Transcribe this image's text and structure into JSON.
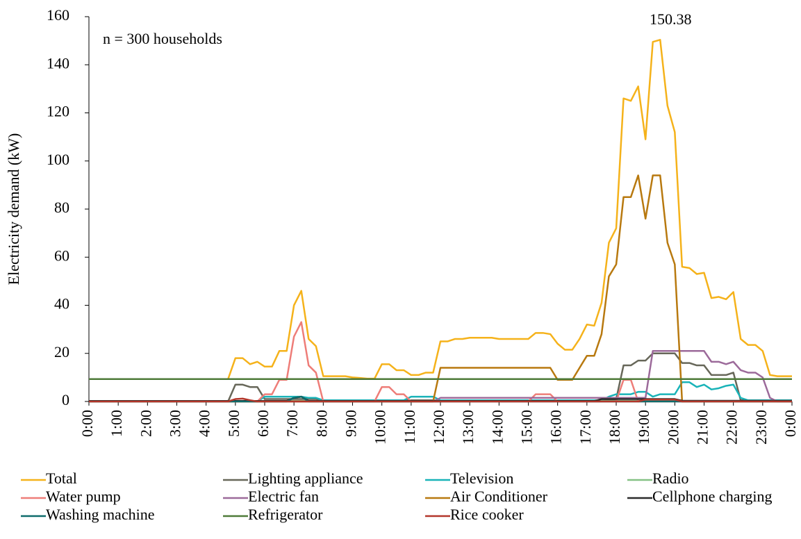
{
  "chart_data": {
    "type": "line",
    "ylabel": "Electricity demand (kW)",
    "annotations": [
      "n = 300 households",
      "150.38"
    ],
    "ylim": [
      0,
      160
    ],
    "yticks": [
      0,
      20,
      40,
      60,
      80,
      100,
      120,
      140,
      160
    ],
    "xlim": [
      0,
      24
    ],
    "xticks": [
      {
        "value": 0,
        "label": "0:00"
      },
      {
        "value": 1,
        "label": "1:00"
      },
      {
        "value": 2,
        "label": "2:00"
      },
      {
        "value": 3,
        "label": "3:00"
      },
      {
        "value": 4,
        "label": "4:00"
      },
      {
        "value": 5,
        "label": "5:00"
      },
      {
        "value": 6,
        "label": "6:00"
      },
      {
        "value": 7,
        "label": "7:00"
      },
      {
        "value": 8,
        "label": "8:00"
      },
      {
        "value": 9,
        "label": "9:00"
      },
      {
        "value": 10,
        "label": "10:00"
      },
      {
        "value": 11,
        "label": "11:00"
      },
      {
        "value": 12,
        "label": "12:00"
      },
      {
        "value": 13,
        "label": "13:00"
      },
      {
        "value": 14,
        "label": "14:00"
      },
      {
        "value": 15,
        "label": "15:00"
      },
      {
        "value": 16,
        "label": "16:00"
      },
      {
        "value": 17,
        "label": "17:00"
      },
      {
        "value": 18,
        "label": "18:00"
      },
      {
        "value": 19,
        "label": "19:00"
      },
      {
        "value": 20,
        "label": "20:00"
      },
      {
        "value": 21,
        "label": "21:00"
      },
      {
        "value": 22,
        "label": "22:00"
      },
      {
        "value": 23,
        "label": "23:00"
      },
      {
        "value": 24,
        "label": "0:00"
      }
    ],
    "x": [
      0,
      0.25,
      0.5,
      0.75,
      1,
      1.25,
      1.5,
      1.75,
      2,
      2.25,
      2.5,
      2.75,
      3,
      3.25,
      3.5,
      3.75,
      4,
      4.25,
      4.5,
      4.75,
      5,
      5.25,
      5.5,
      5.75,
      6,
      6.25,
      6.5,
      6.75,
      7,
      7.25,
      7.5,
      7.75,
      8,
      8.25,
      8.5,
      8.75,
      9,
      9.25,
      9.5,
      9.75,
      10,
      10.25,
      10.5,
      10.75,
      11,
      11.25,
      11.5,
      11.75,
      12,
      12.25,
      12.5,
      12.75,
      13,
      13.25,
      13.5,
      13.75,
      14,
      14.25,
      14.5,
      14.75,
      15,
      15.25,
      15.5,
      15.75,
      16,
      16.25,
      16.5,
      16.75,
      17,
      17.25,
      17.5,
      17.75,
      18,
      18.25,
      18.5,
      18.75,
      19,
      19.25,
      19.5,
      19.75,
      20,
      20.25,
      20.5,
      20.75,
      21,
      21.25,
      21.5,
      21.75,
      22,
      22.25,
      22.5,
      22.75,
      23,
      23.25,
      23.5,
      23.75,
      24
    ],
    "series": [
      {
        "name": "Total",
        "color": "#f5b21a",
        "values": [
          9.3,
          9.3,
          9.3,
          9.3,
          9.3,
          9.3,
          9.3,
          9.3,
          9.3,
          9.3,
          9.3,
          9.3,
          9.3,
          9.3,
          9.3,
          9.3,
          9.3,
          9.3,
          9.3,
          9.3,
          18,
          18,
          15.5,
          16.5,
          14.5,
          14.5,
          21,
          21,
          40,
          46,
          26,
          23,
          10.5,
          10.5,
          10.5,
          10.5,
          10,
          9.8,
          9.5,
          9.5,
          15.5,
          15.5,
          13,
          13,
          11,
          11,
          12,
          12,
          25,
          25,
          26,
          26,
          26.5,
          26.5,
          26.5,
          26.5,
          26,
          26,
          26,
          26,
          26,
          28.5,
          28.5,
          28,
          24,
          21.5,
          21.5,
          26,
          32,
          31.5,
          41,
          66,
          72,
          126,
          125,
          131,
          109,
          149.5,
          150.38,
          123,
          112,
          56,
          55.5,
          53,
          53.5,
          43,
          43.5,
          42.5,
          45.5,
          26,
          23.5,
          23.5,
          21,
          11,
          10.5,
          10.5,
          10.5
        ]
      },
      {
        "name": "Lighting appliance",
        "color": "#676759",
        "values": [
          0,
          0,
          0,
          0,
          0,
          0,
          0,
          0,
          0,
          0,
          0,
          0,
          0,
          0,
          0,
          0,
          0,
          0,
          0,
          0,
          7,
          7,
          6,
          6,
          1,
          1,
          1,
          1,
          1,
          1,
          1,
          1,
          0.5,
          0.5,
          0.5,
          0.5,
          0.5,
          0.5,
          0.5,
          0.5,
          0.5,
          0.5,
          0.5,
          0.5,
          0.5,
          0.5,
          0.5,
          0.5,
          0.5,
          0.5,
          0.5,
          0.5,
          0.5,
          0.5,
          0.5,
          0.5,
          0.5,
          0.5,
          0.5,
          0.5,
          0.5,
          0.5,
          0.5,
          0.5,
          0.5,
          0.5,
          0.5,
          0.5,
          0.5,
          0.5,
          0.5,
          0.5,
          1,
          15,
          15,
          17,
          17,
          20,
          20,
          20,
          20,
          16,
          16,
          15,
          15,
          11,
          11,
          11,
          12,
          0.5,
          0.5,
          0.5,
          0.5,
          0.5,
          0.5,
          0.5,
          0.5
        ]
      },
      {
        "name": "Television",
        "color": "#19b3b8",
        "values": [
          0,
          0,
          0,
          0,
          0,
          0,
          0,
          0,
          0,
          0,
          0,
          0,
          0,
          0,
          0,
          0,
          0,
          0,
          0,
          0,
          0,
          0,
          0,
          0,
          2,
          2,
          2,
          2,
          2,
          2,
          1.5,
          1.5,
          0.5,
          0.5,
          0.5,
          0.5,
          0.5,
          0.5,
          0.5,
          0.5,
          0.5,
          0.5,
          0.5,
          0.5,
          2,
          2,
          2,
          2,
          0.5,
          0.5,
          0.5,
          0.5,
          0.5,
          0.5,
          0.5,
          0.5,
          0.5,
          0.5,
          0.5,
          0.5,
          0.5,
          0.5,
          0.5,
          0.5,
          0.5,
          0.5,
          0.5,
          0.5,
          0.5,
          0.5,
          0.5,
          2,
          3,
          3,
          3,
          4,
          4,
          2,
          3,
          3,
          3,
          8,
          8,
          6,
          7,
          5,
          5.5,
          6.5,
          7,
          1.5,
          0.5,
          0.5,
          0.5,
          0.5,
          0.5,
          0.5,
          0.5
        ]
      },
      {
        "name": "Radio",
        "color": "#85c285",
        "values": [
          0.2,
          0.2,
          0.2,
          0.2,
          0.2,
          0.2,
          0.2,
          0.2,
          0.2,
          0.2,
          0.2,
          0.2,
          0.2,
          0.2,
          0.2,
          0.2,
          0.2,
          0.2,
          0.2,
          0.2,
          0.2,
          0.2,
          0.2,
          0.2,
          0.2,
          0.2,
          0.2,
          0.2,
          0.2,
          0.2,
          0.2,
          0.2,
          0.2,
          0.2,
          0.2,
          0.2,
          0.2,
          0.2,
          0.2,
          0.2,
          0.2,
          0.2,
          0.2,
          0.2,
          0.2,
          0.2,
          0.2,
          0.2,
          0.2,
          0.2,
          0.2,
          0.2,
          0.2,
          0.2,
          0.2,
          0.2,
          0.2,
          0.2,
          0.2,
          0.2,
          0.2,
          0.2,
          0.2,
          0.2,
          0.2,
          0.2,
          0.2,
          0.2,
          0.2,
          0.2,
          0.2,
          0.2,
          0.2,
          0.2,
          0.2,
          0.2,
          0.2,
          0.2,
          0.2,
          0.2,
          0.2,
          0.2,
          0.2,
          0.2,
          0.2,
          0.2,
          0.2,
          0.2,
          0.2,
          0.2,
          0.2,
          0.2,
          0.2,
          0.2,
          0.2,
          0.2,
          0.2
        ]
      },
      {
        "name": "Water pump",
        "color": "#ee7d78",
        "values": [
          0,
          0,
          0,
          0,
          0,
          0,
          0,
          0,
          0,
          0,
          0,
          0,
          0,
          0,
          0,
          0,
          0,
          0,
          0,
          0,
          0,
          0,
          0,
          0,
          3,
          3,
          9,
          9,
          27,
          33,
          15,
          12,
          0,
          0,
          0,
          0,
          0,
          0,
          0,
          0,
          6,
          6,
          3,
          3,
          0,
          0,
          0,
          0,
          0,
          0,
          0,
          0,
          0,
          0,
          0,
          0,
          0,
          0,
          0,
          0,
          0,
          3,
          3,
          3,
          0,
          0,
          0,
          0,
          0,
          0,
          0,
          0,
          0,
          9,
          9,
          0,
          0,
          0,
          0,
          0,
          0,
          0,
          0,
          0,
          0,
          0,
          0,
          0,
          0,
          0,
          0,
          0,
          0,
          0,
          0,
          0,
          0
        ]
      },
      {
        "name": "Electric fan",
        "color": "#9c6a9a",
        "values": [
          0,
          0,
          0,
          0,
          0,
          0,
          0,
          0,
          0,
          0,
          0,
          0,
          0,
          0,
          0,
          0,
          0,
          0,
          0,
          0,
          0,
          0,
          0,
          0,
          0,
          0,
          0,
          0,
          0,
          0,
          0,
          0,
          0,
          0,
          0,
          0,
          0,
          0,
          0,
          0,
          0,
          0,
          0,
          0,
          0,
          0,
          0,
          0,
          1.5,
          1.5,
          1.5,
          1.5,
          1.5,
          1.5,
          1.5,
          1.5,
          1.5,
          1.5,
          1.5,
          1.5,
          1.5,
          1.5,
          1.5,
          1.5,
          1.5,
          1.5,
          1.5,
          1.5,
          1.5,
          1.5,
          1.5,
          1.5,
          1.5,
          1.5,
          1.5,
          1.5,
          1.5,
          21,
          21,
          21,
          21,
          21,
          21,
          21,
          21,
          16.5,
          16.5,
          15.5,
          16.5,
          13,
          12,
          12,
          10,
          1.5,
          0,
          0,
          0
        ]
      },
      {
        "name": "Air Conditioner",
        "color": "#b8790f",
        "values": [
          0,
          0,
          0,
          0,
          0,
          0,
          0,
          0,
          0,
          0,
          0,
          0,
          0,
          0,
          0,
          0,
          0,
          0,
          0,
          0,
          0,
          0,
          0,
          0,
          0,
          0,
          0,
          0,
          0,
          0,
          0,
          0,
          0,
          0,
          0,
          0,
          0,
          0,
          0,
          0,
          0,
          0,
          0,
          0,
          0,
          0,
          0,
          0,
          14,
          14,
          14,
          14,
          14,
          14,
          14,
          14,
          14,
          14,
          14,
          14,
          14,
          14,
          14,
          14,
          9,
          9,
          9,
          14,
          19,
          19,
          28,
          52,
          57,
          85,
          85,
          94,
          76,
          94,
          94,
          66,
          57,
          0,
          0,
          0,
          0,
          0,
          0,
          0,
          0,
          0,
          0,
          0,
          0,
          0,
          0,
          0,
          0
        ]
      },
      {
        "name": "Cellphone charging",
        "color": "#2b2b2b",
        "values": [
          0.2,
          0.2,
          0.2,
          0.2,
          0.2,
          0.2,
          0.2,
          0.2,
          0.2,
          0.2,
          0.2,
          0.2,
          0.2,
          0.2,
          0.2,
          0.2,
          0.2,
          0.2,
          0.2,
          0.2,
          0.2,
          0.2,
          0.2,
          0.2,
          0.2,
          0.2,
          0.2,
          0.2,
          1.5,
          2,
          0.2,
          0.2,
          0.2,
          0.2,
          0.2,
          0.2,
          0.2,
          0.2,
          0.2,
          0.2,
          0.2,
          0.2,
          0.2,
          0.2,
          0.2,
          0.2,
          0.2,
          0.2,
          0.2,
          0.2,
          0.2,
          0.2,
          0.2,
          0.2,
          0.2,
          0.2,
          0.2,
          0.2,
          0.2,
          0.2,
          0.2,
          0.2,
          0.2,
          0.2,
          0.2,
          0.2,
          0.2,
          0.2,
          0.2,
          0.2,
          1,
          1,
          1,
          1,
          1,
          1,
          1,
          1,
          1,
          1,
          1,
          0.3,
          0.3,
          0.3,
          0.3,
          0.3,
          0.3,
          0.3,
          0.3,
          0.3,
          0.3,
          0.3,
          0.3,
          0.3,
          0.3,
          0.3,
          0.3
        ]
      },
      {
        "name": "Washing machine",
        "color": "#0d6b6b",
        "values": [
          0,
          0,
          0,
          0,
          0,
          0,
          0,
          0,
          0,
          0,
          0,
          0,
          0,
          0,
          0,
          0,
          0,
          0,
          0,
          0,
          0,
          0,
          0,
          0,
          0,
          0,
          0,
          0,
          1.5,
          2,
          0,
          0,
          0,
          0,
          0,
          0,
          0,
          0,
          0,
          0,
          0,
          0,
          0,
          0,
          0,
          0,
          0,
          0,
          0,
          0,
          0,
          0,
          0,
          0,
          0,
          0,
          0,
          0,
          0,
          0,
          0,
          0,
          0,
          0,
          0,
          0,
          0,
          0,
          0,
          0,
          0,
          0,
          0,
          0,
          0,
          0,
          0,
          0,
          0,
          0,
          0,
          0,
          0,
          0,
          0,
          0,
          0,
          0,
          0,
          0,
          0,
          0,
          0,
          0,
          0,
          0,
          0
        ]
      },
      {
        "name": "Refrigerator",
        "color": "#4e7a38",
        "values": [
          9.3,
          9.3,
          9.3,
          9.3,
          9.3,
          9.3,
          9.3,
          9.3,
          9.3,
          9.3,
          9.3,
          9.3,
          9.3,
          9.3,
          9.3,
          9.3,
          9.3,
          9.3,
          9.3,
          9.3,
          9.3,
          9.3,
          9.3,
          9.3,
          9.3,
          9.3,
          9.3,
          9.3,
          9.3,
          9.3,
          9.3,
          9.3,
          9.3,
          9.3,
          9.3,
          9.3,
          9.3,
          9.3,
          9.3,
          9.3,
          9.3,
          9.3,
          9.3,
          9.3,
          9.3,
          9.3,
          9.3,
          9.3,
          9.3,
          9.3,
          9.3,
          9.3,
          9.3,
          9.3,
          9.3,
          9.3,
          9.3,
          9.3,
          9.3,
          9.3,
          9.3,
          9.3,
          9.3,
          9.3,
          9.3,
          9.3,
          9.3,
          9.3,
          9.3,
          9.3,
          9.3,
          9.3,
          9.3,
          9.3,
          9.3,
          9.3,
          9.3,
          9.3,
          9.3,
          9.3,
          9.3,
          9.3,
          9.3,
          9.3,
          9.3,
          9.3,
          9.3,
          9.3,
          9.3,
          9.3,
          9.3,
          9.3,
          9.3,
          9.3,
          9.3,
          9.3,
          9.3
        ]
      },
      {
        "name": "Rice cooker",
        "color": "#b3362a",
        "values": [
          0,
          0,
          0,
          0,
          0,
          0,
          0,
          0,
          0,
          0,
          0,
          0,
          0,
          0,
          0,
          0,
          0,
          0,
          0,
          0,
          1,
          1.2,
          0.5,
          0,
          0,
          0,
          0,
          0,
          0,
          0,
          0,
          0,
          0,
          0,
          0,
          0,
          0,
          0,
          0,
          0,
          0,
          0,
          0,
          0,
          0,
          0,
          0,
          0,
          0,
          0,
          0,
          0,
          0,
          0,
          0,
          0,
          0,
          0,
          0,
          0,
          0,
          0,
          0,
          0,
          0,
          0,
          0,
          0,
          0,
          0,
          0,
          0,
          0,
          0,
          0,
          0,
          0.8,
          0.8,
          0.8,
          0.8,
          0.8,
          0,
          0,
          0,
          0,
          0,
          0,
          0,
          0,
          0,
          0,
          0,
          0,
          0,
          0,
          0,
          0
        ]
      }
    ]
  }
}
